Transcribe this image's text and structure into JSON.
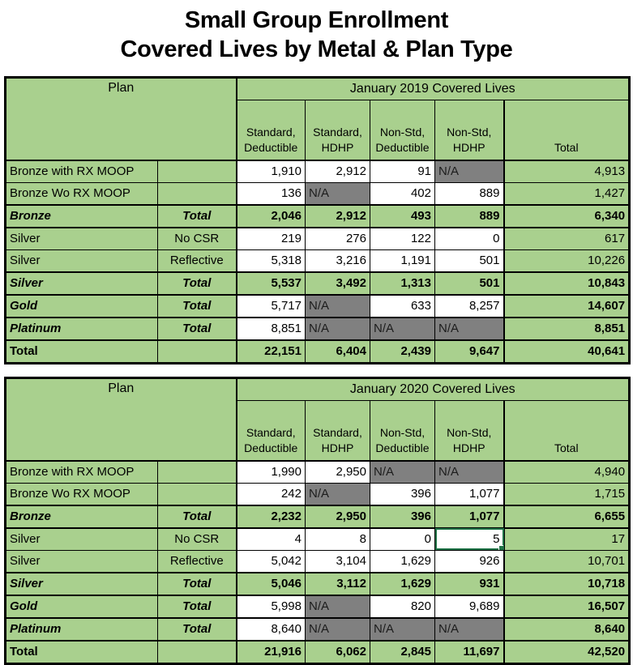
{
  "title": {
    "line1": "Small Group Enrollment",
    "line2": "Covered Lives by Metal & Plan Type"
  },
  "colors": {
    "cell_green": "#a9d08e",
    "na_gray": "#808080",
    "na_text": "#1c1c1c",
    "selection_green": "#1f7246"
  },
  "tables": [
    {
      "id": "jan2019",
      "plan_header": "Plan",
      "period_header": "January 2019 Covered Lives",
      "column_headers": [
        "Standard,\nDeductible",
        "Standard,\nHDHP",
        "Non-Std,\nDeductible",
        "Non-Std,\nHDHP",
        "Total"
      ],
      "rows": [
        {
          "plan": "Bronze with RX MOOP",
          "sub": "",
          "label_italic": false,
          "label_bold": false,
          "thick_top": false,
          "cells": [
            {
              "v": "1,910",
              "bg": "w"
            },
            {
              "v": "2,912",
              "bg": "w"
            },
            {
              "v": "91",
              "bg": "w"
            },
            {
              "v": "N/A",
              "bg": "na"
            },
            {
              "v": "4,913",
              "bg": "g"
            }
          ]
        },
        {
          "plan": "Bronze Wo RX MOOP",
          "sub": "",
          "label_italic": false,
          "label_bold": false,
          "thick_top": false,
          "cells": [
            {
              "v": "136",
              "bg": "w"
            },
            {
              "v": "N/A",
              "bg": "na"
            },
            {
              "v": "402",
              "bg": "w"
            },
            {
              "v": "889",
              "bg": "w"
            },
            {
              "v": "1,427",
              "bg": "g"
            }
          ]
        },
        {
          "plan": "Bronze",
          "sub": "Total",
          "label_italic": true,
          "label_bold": true,
          "thick_top": true,
          "cells": [
            {
              "v": "2,046",
              "bg": "g",
              "b": true
            },
            {
              "v": "2,912",
              "bg": "g",
              "b": true
            },
            {
              "v": "493",
              "bg": "g",
              "b": true
            },
            {
              "v": "889",
              "bg": "g",
              "b": true
            },
            {
              "v": "6,340",
              "bg": "g",
              "b": true
            }
          ]
        },
        {
          "plan": "Silver",
          "sub": "No CSR",
          "label_italic": false,
          "label_bold": false,
          "thick_top": true,
          "cells": [
            {
              "v": "219",
              "bg": "w"
            },
            {
              "v": "276",
              "bg": "w"
            },
            {
              "v": "122",
              "bg": "w"
            },
            {
              "v": "0",
              "bg": "w"
            },
            {
              "v": "617",
              "bg": "g"
            }
          ]
        },
        {
          "plan": "Silver",
          "sub": "Reflective",
          "label_italic": false,
          "label_bold": false,
          "thick_top": false,
          "cells": [
            {
              "v": "5,318",
              "bg": "w"
            },
            {
              "v": "3,216",
              "bg": "w"
            },
            {
              "v": "1,191",
              "bg": "w"
            },
            {
              "v": "501",
              "bg": "w"
            },
            {
              "v": "10,226",
              "bg": "g"
            }
          ]
        },
        {
          "plan": "Silver",
          "sub": "Total",
          "label_italic": true,
          "label_bold": true,
          "thick_top": true,
          "cells": [
            {
              "v": "5,537",
              "bg": "g",
              "b": true
            },
            {
              "v": "3,492",
              "bg": "g",
              "b": true
            },
            {
              "v": "1,313",
              "bg": "g",
              "b": true
            },
            {
              "v": "501",
              "bg": "g",
              "b": true
            },
            {
              "v": "10,843",
              "bg": "g",
              "b": true
            }
          ]
        },
        {
          "plan": "Gold",
          "sub": "Total",
          "label_italic": true,
          "label_bold": true,
          "thick_top": true,
          "cells": [
            {
              "v": "5,717",
              "bg": "w"
            },
            {
              "v": "N/A",
              "bg": "na"
            },
            {
              "v": "633",
              "bg": "w"
            },
            {
              "v": "8,257",
              "bg": "w"
            },
            {
              "v": "14,607",
              "bg": "g",
              "b": true
            }
          ]
        },
        {
          "plan": "Platinum",
          "sub": "Total",
          "label_italic": true,
          "label_bold": true,
          "thick_top": true,
          "cells": [
            {
              "v": "8,851",
              "bg": "w"
            },
            {
              "v": "N/A",
              "bg": "na"
            },
            {
              "v": "N/A",
              "bg": "na"
            },
            {
              "v": "N/A",
              "bg": "na"
            },
            {
              "v": "8,851",
              "bg": "g",
              "b": true
            }
          ]
        },
        {
          "plan": "Total",
          "sub": "",
          "label_italic": false,
          "label_bold": true,
          "thick_top": true,
          "cells": [
            {
              "v": "22,151",
              "bg": "g",
              "b": true
            },
            {
              "v": "6,404",
              "bg": "g",
              "b": true
            },
            {
              "v": "2,439",
              "bg": "g",
              "b": true
            },
            {
              "v": "9,647",
              "bg": "g",
              "b": true
            },
            {
              "v": "40,641",
              "bg": "g",
              "b": true
            }
          ]
        }
      ]
    },
    {
      "id": "jan2020",
      "plan_header": "Plan",
      "period_header": "January 2020 Covered Lives",
      "column_headers": [
        "Standard,\nDeductible",
        "Standard,\nHDHP",
        "Non-Std,\nDeductible",
        "Non-Std,\nHDHP",
        "Total"
      ],
      "rows": [
        {
          "plan": "Bronze with RX MOOP",
          "sub": "",
          "label_italic": false,
          "label_bold": false,
          "thick_top": false,
          "cells": [
            {
              "v": "1,990",
              "bg": "w"
            },
            {
              "v": "2,950",
              "bg": "w"
            },
            {
              "v": "N/A",
              "bg": "na"
            },
            {
              "v": "N/A",
              "bg": "na"
            },
            {
              "v": "4,940",
              "bg": "g"
            }
          ]
        },
        {
          "plan": "Bronze Wo RX MOOP",
          "sub": "",
          "label_italic": false,
          "label_bold": false,
          "thick_top": false,
          "cells": [
            {
              "v": "242",
              "bg": "w"
            },
            {
              "v": "N/A",
              "bg": "na"
            },
            {
              "v": "396",
              "bg": "w"
            },
            {
              "v": "1,077",
              "bg": "w"
            },
            {
              "v": "1,715",
              "bg": "g"
            }
          ]
        },
        {
          "plan": "Bronze",
          "sub": "Total",
          "label_italic": true,
          "label_bold": true,
          "thick_top": true,
          "cells": [
            {
              "v": "2,232",
              "bg": "g",
              "b": true
            },
            {
              "v": "2,950",
              "bg": "g",
              "b": true
            },
            {
              "v": "396",
              "bg": "g",
              "b": true
            },
            {
              "v": "1,077",
              "bg": "g",
              "b": true
            },
            {
              "v": "6,655",
              "bg": "g",
              "b": true
            }
          ]
        },
        {
          "plan": "Silver",
          "sub": "No CSR",
          "label_italic": false,
          "label_bold": false,
          "thick_top": true,
          "cells": [
            {
              "v": "4",
              "bg": "w"
            },
            {
              "v": "8",
              "bg": "w"
            },
            {
              "v": "0",
              "bg": "w"
            },
            {
              "v": "5",
              "bg": "w",
              "sel": true
            },
            {
              "v": "17",
              "bg": "g"
            }
          ]
        },
        {
          "plan": "Silver",
          "sub": "Reflective",
          "label_italic": false,
          "label_bold": false,
          "thick_top": false,
          "cells": [
            {
              "v": "5,042",
              "bg": "w"
            },
            {
              "v": "3,104",
              "bg": "w"
            },
            {
              "v": "1,629",
              "bg": "w"
            },
            {
              "v": "926",
              "bg": "w"
            },
            {
              "v": "10,701",
              "bg": "g"
            }
          ]
        },
        {
          "plan": "Silver",
          "sub": "Total",
          "label_italic": true,
          "label_bold": true,
          "thick_top": true,
          "cells": [
            {
              "v": "5,046",
              "bg": "g",
              "b": true
            },
            {
              "v": "3,112",
              "bg": "g",
              "b": true
            },
            {
              "v": "1,629",
              "bg": "g",
              "b": true
            },
            {
              "v": "931",
              "bg": "g",
              "b": true
            },
            {
              "v": "10,718",
              "bg": "g",
              "b": true
            }
          ]
        },
        {
          "plan": "Gold",
          "sub": "Total",
          "label_italic": true,
          "label_bold": true,
          "thick_top": true,
          "cells": [
            {
              "v": "5,998",
              "bg": "w"
            },
            {
              "v": "N/A",
              "bg": "na"
            },
            {
              "v": "820",
              "bg": "w"
            },
            {
              "v": "9,689",
              "bg": "w"
            },
            {
              "v": "16,507",
              "bg": "g",
              "b": true
            }
          ]
        },
        {
          "plan": "Platinum",
          "sub": "Total",
          "label_italic": true,
          "label_bold": true,
          "thick_top": true,
          "cells": [
            {
              "v": "8,640",
              "bg": "w"
            },
            {
              "v": "N/A",
              "bg": "na"
            },
            {
              "v": "N/A",
              "bg": "na"
            },
            {
              "v": "N/A",
              "bg": "na"
            },
            {
              "v": "8,640",
              "bg": "g",
              "b": true
            }
          ]
        },
        {
          "plan": "Total",
          "sub": "",
          "label_italic": false,
          "label_bold": true,
          "thick_top": true,
          "cells": [
            {
              "v": "21,916",
              "bg": "g",
              "b": true
            },
            {
              "v": "6,062",
              "bg": "g",
              "b": true
            },
            {
              "v": "2,845",
              "bg": "g",
              "b": true
            },
            {
              "v": "11,697",
              "bg": "g",
              "b": true
            },
            {
              "v": "42,520",
              "bg": "g",
              "b": true
            }
          ]
        }
      ]
    }
  ]
}
